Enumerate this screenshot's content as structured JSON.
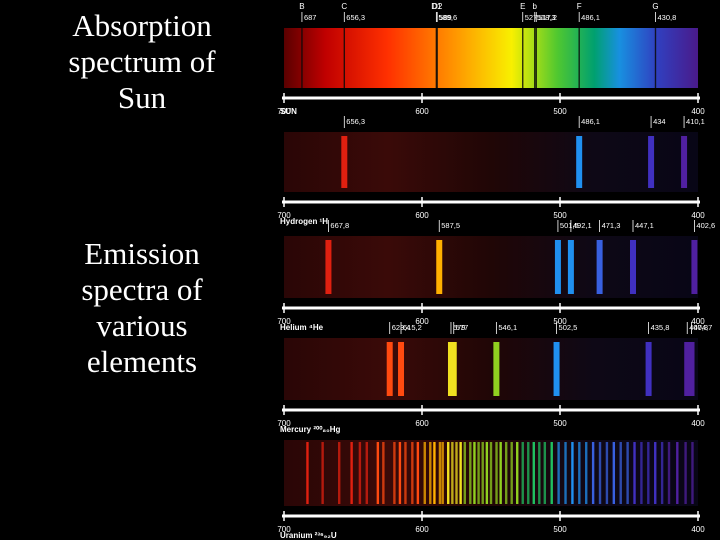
{
  "captions": {
    "absorption": "Absorption\nspectrum of\nSun",
    "emission": "Emission\nspectra of\nvarious\nelements"
  },
  "axis_ticks": [
    "700",
    "600",
    "500",
    "400"
  ],
  "panels": [
    {
      "id": "sun",
      "name": "SUN",
      "kind": "absorption",
      "letters": [
        {
          "label": "B",
          "nm": 687
        },
        {
          "label": "C",
          "nm": 656.3
        },
        {
          "label": "D1",
          "nm": 589.6
        },
        {
          "label": "D2",
          "nm": 589
        },
        {
          "label": "E",
          "nm": 527
        },
        {
          "label": "b",
          "nm": 518.3
        },
        {
          "label": "F",
          "nm": 486.1
        },
        {
          "label": "G",
          "nm": 430.8
        }
      ],
      "line_labels": [
        "687",
        "656,3",
        "589,6",
        "589",
        "527",
        "518,3",
        "517,2",
        "486,1",
        "430,8"
      ],
      "lines_nm": [
        687,
        656.3,
        589.6,
        589,
        527,
        518.3,
        517.2,
        486.1,
        430.8
      ]
    },
    {
      "id": "hydrogen",
      "name": "Hydrogen ¹H",
      "kind": "emission",
      "lines": [
        {
          "nm": 656.3,
          "label": "656,3"
        },
        {
          "nm": 486.1,
          "label": "486,1"
        },
        {
          "nm": 434,
          "label": "434"
        },
        {
          "nm": 410.1,
          "label": "410,1"
        }
      ]
    },
    {
      "id": "helium",
      "name": "Helium ⁴He",
      "kind": "emission",
      "lines": [
        {
          "nm": 667.8,
          "label": "667,8"
        },
        {
          "nm": 587.5,
          "label": "587,5"
        },
        {
          "nm": 501.5,
          "label": "501,5"
        },
        {
          "nm": 492.1,
          "label": "492,1"
        },
        {
          "nm": 471.3,
          "label": "471,3"
        },
        {
          "nm": 447.1,
          "label": "447,1"
        },
        {
          "nm": 402.6,
          "label": "402,6"
        }
      ]
    },
    {
      "id": "mercury",
      "name": "Mercury ²⁰⁰₈₀Hg",
      "kind": "emission",
      "lines": [
        {
          "nm": 623.4,
          "label": "623,4"
        },
        {
          "nm": 615.2,
          "label": "615,2"
        },
        {
          "nm": 579,
          "label": "579"
        },
        {
          "nm": 577,
          "label": "577"
        },
        {
          "nm": 546.1,
          "label": "546,1"
        },
        {
          "nm": 502.5,
          "label": "502,5"
        },
        {
          "nm": 435.8,
          "label": "435,8"
        },
        {
          "nm": 407.8,
          "label": "407,8"
        },
        {
          "nm": 404.7,
          "label": "404,7"
        }
      ]
    },
    {
      "id": "uranium",
      "name": "Uranium ²³⁶₉₂U",
      "kind": "emission",
      "lines_nm": [
        683,
        672,
        660,
        651,
        645,
        640,
        632,
        628,
        620,
        616,
        612,
        607,
        603,
        598,
        594,
        591,
        587,
        585,
        581,
        578,
        575,
        572,
        569,
        565,
        562,
        559,
        556,
        553,
        550,
        546,
        543,
        539,
        535,
        531,
        527,
        523,
        519,
        515,
        511,
        506,
        501,
        496,
        491,
        486,
        481,
        476,
        471,
        466,
        461,
        456,
        451,
        446,
        441,
        436,
        431,
        426,
        421,
        415,
        409,
        404
      ]
    }
  ]
}
